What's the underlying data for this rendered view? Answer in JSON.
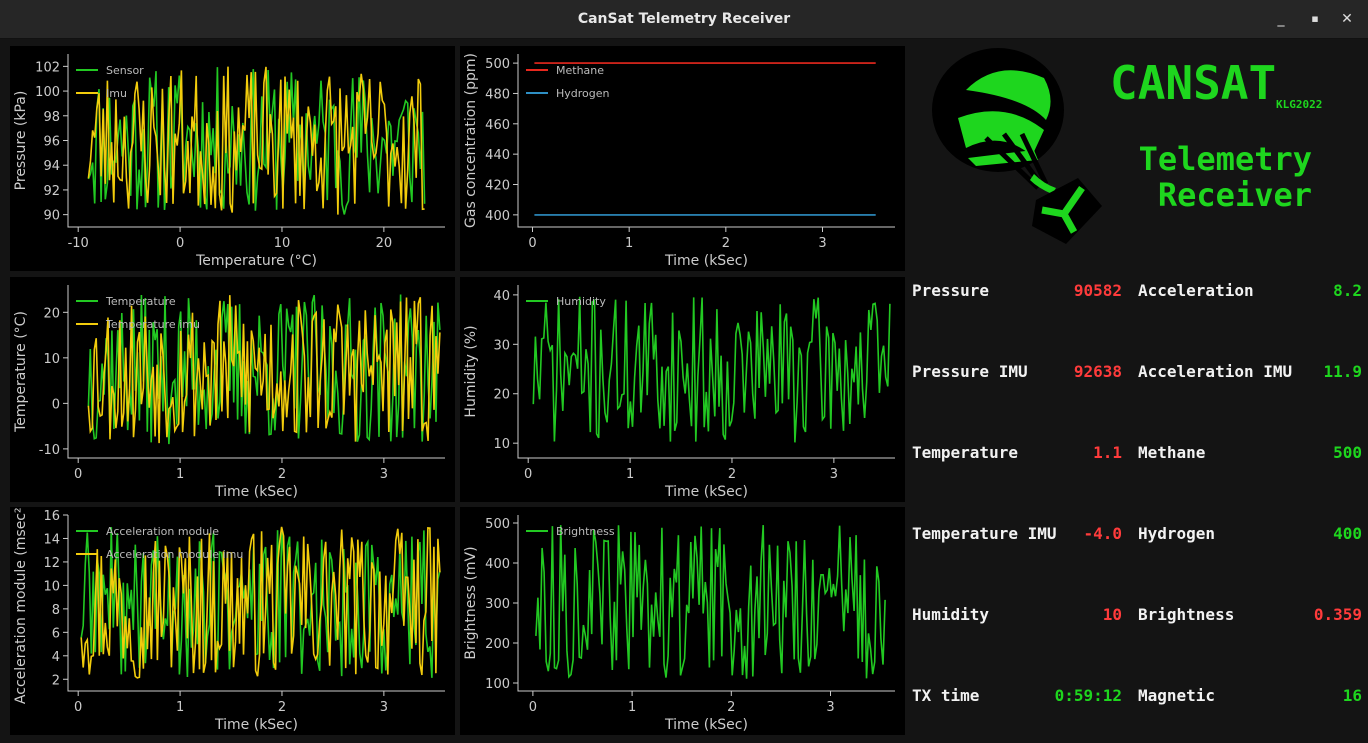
{
  "window": {
    "title": "CanSat Telemetry Receiver",
    "minimize": "_",
    "maximize": "▪",
    "close": "✕"
  },
  "branding": {
    "title": "CANSAT",
    "subtitle": "KLG2022",
    "line1": "Telemetry",
    "line2": "Receiver",
    "logo_icon": "parachute-cansat-icon",
    "accent": "#1ed61e"
  },
  "readouts": [
    {
      "label": "Pressure",
      "value": "90582",
      "color": "#ff3b3b"
    },
    {
      "label": "Acceleration",
      "value": "8.2",
      "color": "#1ed61e"
    },
    {
      "label": "Pressure IMU",
      "value": "92638",
      "color": "#ff3b3b"
    },
    {
      "label": "Acceleration IMU",
      "value": "11.9",
      "color": "#1ed61e"
    },
    {
      "label": "Temperature",
      "value": "1.1",
      "color": "#ff3b3b"
    },
    {
      "label": "Methane",
      "value": "500",
      "color": "#1ed61e"
    },
    {
      "label": "Temperature IMU",
      "value": "-4.0",
      "color": "#ff3b3b"
    },
    {
      "label": "Hydrogen",
      "value": "400",
      "color": "#1ed61e"
    },
    {
      "label": "Humidity",
      "value": "10",
      "color": "#ff3b3b"
    },
    {
      "label": "Brightness",
      "value": "0.359",
      "color": "#ff3b3b"
    },
    {
      "label": "TX time",
      "value": "0:59:12",
      "color": "#1ed61e"
    },
    {
      "label": "Magnetic",
      "value": "16",
      "color": "#1ed61e"
    }
  ],
  "chart_data": [
    {
      "id": "pressure",
      "type": "line",
      "xlabel": "Temperature (°C)",
      "ylabel": "Pressure (kPa)",
      "xlim": [
        -11,
        26
      ],
      "ylim": [
        89,
        103
      ],
      "xticks": [
        -10,
        0,
        10,
        20
      ],
      "yticks": [
        90,
        92,
        94,
        96,
        98,
        100,
        102
      ],
      "series": [
        {
          "name": "Sensor",
          "color": "#22c922",
          "seed": 11,
          "n": 160,
          "xr": [
            -9,
            24
          ],
          "yr": [
            90,
            102
          ]
        },
        {
          "name": "Imu",
          "color": "#f2cc0c",
          "seed": 23,
          "n": 160,
          "xr": [
            -9,
            24
          ],
          "yr": [
            90,
            102
          ]
        }
      ]
    },
    {
      "id": "gas",
      "type": "line",
      "xlabel": "Time (kSec)",
      "ylabel": "Gas concentration (ppm)",
      "xlim": [
        -0.15,
        3.75
      ],
      "ylim": [
        392,
        506
      ],
      "xticks": [
        0,
        1,
        2,
        3
      ],
      "yticks": [
        400,
        420,
        440,
        460,
        480,
        500
      ],
      "series": [
        {
          "name": "Methane",
          "color": "#e8281e",
          "flat": 500,
          "xr": [
            0.02,
            3.55
          ]
        },
        {
          "name": "Hydrogen",
          "color": "#2e8fc4",
          "flat": 400,
          "xr": [
            0.02,
            3.55
          ]
        }
      ]
    },
    {
      "id": "temperature",
      "type": "line",
      "xlabel": "Time (kSec)",
      "ylabel": "Temperature (°C)",
      "xlim": [
        -0.1,
        3.6
      ],
      "ylim": [
        -12,
        26
      ],
      "xticks": [
        0,
        1,
        2,
        3
      ],
      "yticks": [
        -10,
        0,
        10,
        20
      ],
      "series": [
        {
          "name": "Temperature",
          "color": "#22c922",
          "seed": 37,
          "n": 180,
          "xr": [
            0.1,
            3.55
          ],
          "yr": [
            -9,
            24
          ]
        },
        {
          "name": "Temperature imu",
          "color": "#f2cc0c",
          "seed": 53,
          "n": 180,
          "xr": [
            0.1,
            3.55
          ],
          "yr": [
            -9,
            24
          ]
        }
      ]
    },
    {
      "id": "humidity",
      "type": "line",
      "xlabel": "Time (kSec)",
      "ylabel": "Humidity (%)",
      "xlim": [
        -0.1,
        3.6
      ],
      "ylim": [
        7,
        42
      ],
      "xticks": [
        0,
        1,
        2,
        3
      ],
      "yticks": [
        10,
        20,
        30,
        40
      ],
      "series": [
        {
          "name": "Humidity",
          "color": "#22c922",
          "seed": 71,
          "n": 170,
          "xr": [
            0.05,
            3.55
          ],
          "yr": [
            10,
            40
          ]
        }
      ]
    },
    {
      "id": "acceleration",
      "type": "line",
      "xlabel": "Time (kSec)",
      "ylabel": "Acceleration module (msec²)",
      "xlim": [
        -0.1,
        3.6
      ],
      "ylim": [
        1,
        16
      ],
      "xticks": [
        0,
        1,
        2,
        3
      ],
      "yticks": [
        2,
        4,
        6,
        8,
        10,
        12,
        14,
        16
      ],
      "series": [
        {
          "name": "Acceleration module",
          "color": "#22c922",
          "seed": 89,
          "n": 180,
          "xr": [
            0.03,
            3.55
          ],
          "yr": [
            2,
            15
          ]
        },
        {
          "name": "Acceleration module imu",
          "color": "#f2cc0c",
          "seed": 97,
          "n": 180,
          "xr": [
            0.03,
            3.55
          ],
          "yr": [
            2,
            15
          ]
        }
      ]
    },
    {
      "id": "brightness",
      "type": "line",
      "xlabel": "Time (kSec)",
      "ylabel": "Brightness (mV)",
      "xlim": [
        -0.15,
        3.65
      ],
      "ylim": [
        80,
        520
      ],
      "xticks": [
        0,
        1,
        2,
        3
      ],
      "yticks": [
        100,
        200,
        300,
        400,
        500
      ],
      "series": [
        {
          "name": "Brightness",
          "color": "#22c922",
          "seed": 113,
          "n": 170,
          "xr": [
            0.03,
            3.55
          ],
          "yr": [
            110,
            495
          ]
        }
      ]
    }
  ]
}
